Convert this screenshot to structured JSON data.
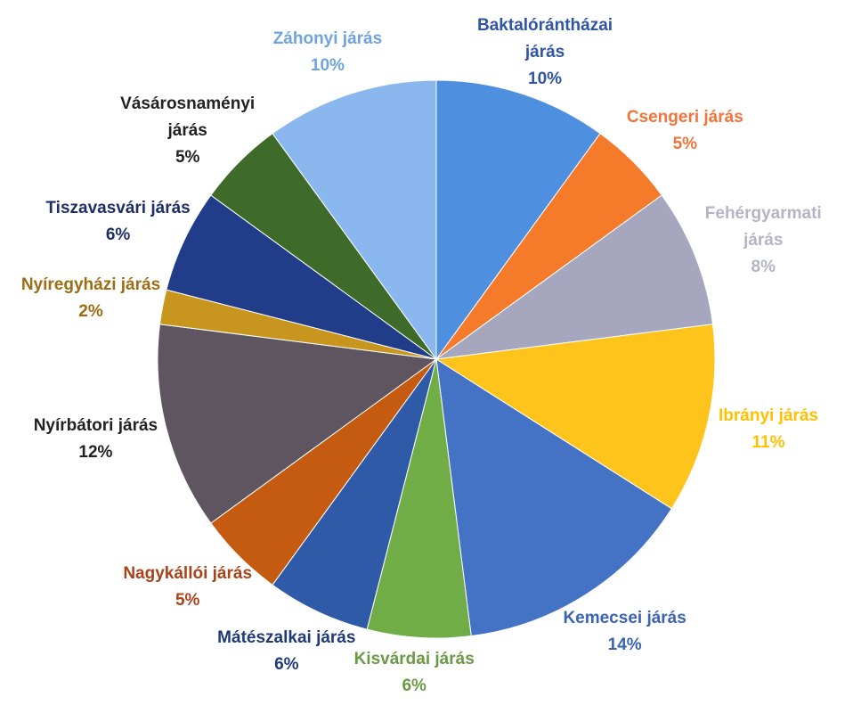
{
  "chart_data": {
    "type": "pie",
    "categories": [
      "Baktalórántházai járás",
      "Csengeri járás",
      "Fehérgyarmati járás",
      "Ibrányi járás",
      "Kemecsei járás",
      "Kisvárdai járás",
      "Mátészalkai járás",
      "Nagykállói járás",
      "Nyírbátori járás",
      "Nyíregyházi járás",
      "Tiszavasvári járás",
      "Vásárosnaményi járás",
      "Záhonyi járás"
    ],
    "values": [
      10,
      5,
      8,
      11,
      14,
      6,
      6,
      5,
      12,
      2,
      6,
      5,
      10
    ],
    "value_labels": [
      "10%",
      "5%",
      "8%",
      "11%",
      "14%",
      "6%",
      "6%",
      "5%",
      "12%",
      "2%",
      "6%",
      "5%",
      "10%"
    ],
    "colors": [
      "#4f8fe0",
      "#f57a2a",
      "#a6a6bf",
      "#ffc41c",
      "#4472c4",
      "#70ad47",
      "#2e5aa8",
      "#c55a11",
      "#5e5560",
      "#c8961e",
      "#213d8a",
      "#3f6b2a",
      "#8ab8ee"
    ],
    "label_colors": [
      "#2f55a4",
      "#f2743a",
      "#b4b4c4",
      "#ffc000",
      "#3a63b4",
      "#6a9a45",
      "#1f3a78",
      "#a8431a",
      "#222222",
      "#9c6d12",
      "#1f2f66",
      "#222222",
      "#6fa3e0"
    ]
  }
}
